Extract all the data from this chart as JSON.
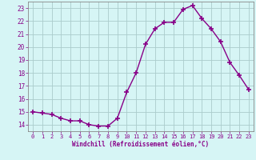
{
  "x": [
    0,
    1,
    2,
    3,
    4,
    5,
    6,
    7,
    8,
    9,
    10,
    11,
    12,
    13,
    14,
    15,
    16,
    17,
    18,
    19,
    20,
    21,
    22,
    23
  ],
  "y": [
    15.0,
    14.9,
    14.8,
    14.5,
    14.3,
    14.3,
    14.0,
    13.9,
    13.9,
    14.5,
    16.5,
    18.0,
    20.2,
    21.4,
    21.9,
    21.9,
    22.9,
    23.2,
    22.2,
    21.4,
    20.4,
    18.8,
    17.8,
    16.7
  ],
  "line_color": "#880088",
  "marker": "+",
  "marker_size": 4,
  "marker_linewidth": 1.2,
  "bg_color": "#d6f5f5",
  "grid_color": "#aacccc",
  "xlabel": "Windchill (Refroidissement éolien,°C)",
  "xlabel_color": "#880088",
  "tick_color": "#880088",
  "ylim": [
    13.5,
    23.5
  ],
  "xlim": [
    -0.5,
    23.5
  ],
  "yticks": [
    14,
    15,
    16,
    17,
    18,
    19,
    20,
    21,
    22,
    23
  ],
  "xticks": [
    0,
    1,
    2,
    3,
    4,
    5,
    6,
    7,
    8,
    9,
    10,
    11,
    12,
    13,
    14,
    15,
    16,
    17,
    18,
    19,
    20,
    21,
    22,
    23
  ],
  "spine_color": "#888888",
  "linewidth": 1.0
}
